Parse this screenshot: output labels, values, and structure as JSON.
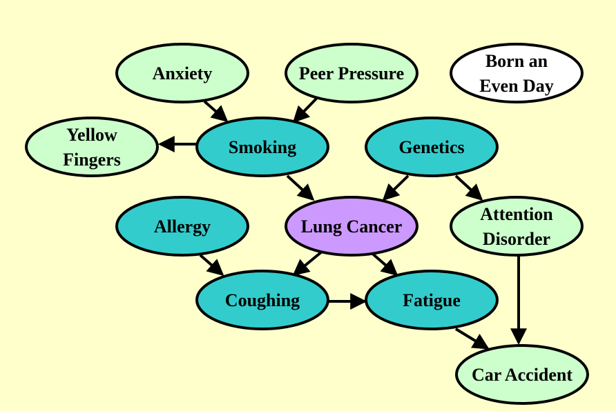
{
  "colors": {
    "background": "#ffffcc",
    "light_node": "#ccffcc",
    "dark_node": "#33cccc",
    "target_node": "#cc99ff",
    "isolated_node": "#ffffff",
    "stroke": "#000000"
  },
  "nodes": [
    {
      "id": "anxiety",
      "lines": [
        "Anxiety"
      ],
      "style": "light_node"
    },
    {
      "id": "peer-pressure",
      "lines": [
        "Peer Pressure"
      ],
      "style": "light_node"
    },
    {
      "id": "born-even-day",
      "lines": [
        "Born an",
        "Even Day"
      ],
      "style": "isolated_node"
    },
    {
      "id": "yellow-fingers",
      "lines": [
        "Yellow",
        "Fingers"
      ],
      "style": "light_node"
    },
    {
      "id": "smoking",
      "lines": [
        "Smoking"
      ],
      "style": "dark_node"
    },
    {
      "id": "genetics",
      "lines": [
        "Genetics"
      ],
      "style": "dark_node"
    },
    {
      "id": "allergy",
      "lines": [
        "Allergy"
      ],
      "style": "dark_node"
    },
    {
      "id": "lung-cancer",
      "lines": [
        "Lung Cancer"
      ],
      "style": "target_node"
    },
    {
      "id": "attention-disorder",
      "lines": [
        "Attention",
        "Disorder"
      ],
      "style": "light_node"
    },
    {
      "id": "coughing",
      "lines": [
        "Coughing"
      ],
      "style": "dark_node"
    },
    {
      "id": "fatigue",
      "lines": [
        "Fatigue"
      ],
      "style": "dark_node"
    },
    {
      "id": "car-accident",
      "lines": [
        "Car Accident"
      ],
      "style": "light_node"
    }
  ],
  "edges": [
    {
      "from": "anxiety",
      "to": "smoking"
    },
    {
      "from": "peer-pressure",
      "to": "smoking"
    },
    {
      "from": "smoking",
      "to": "yellow-fingers"
    },
    {
      "from": "smoking",
      "to": "lung-cancer"
    },
    {
      "from": "genetics",
      "to": "lung-cancer"
    },
    {
      "from": "genetics",
      "to": "attention-disorder"
    },
    {
      "from": "allergy",
      "to": "coughing"
    },
    {
      "from": "lung-cancer",
      "to": "coughing"
    },
    {
      "from": "lung-cancer",
      "to": "fatigue"
    },
    {
      "from": "coughing",
      "to": "fatigue"
    },
    {
      "from": "fatigue",
      "to": "car-accident"
    },
    {
      "from": "attention-disorder",
      "to": "car-accident"
    }
  ]
}
